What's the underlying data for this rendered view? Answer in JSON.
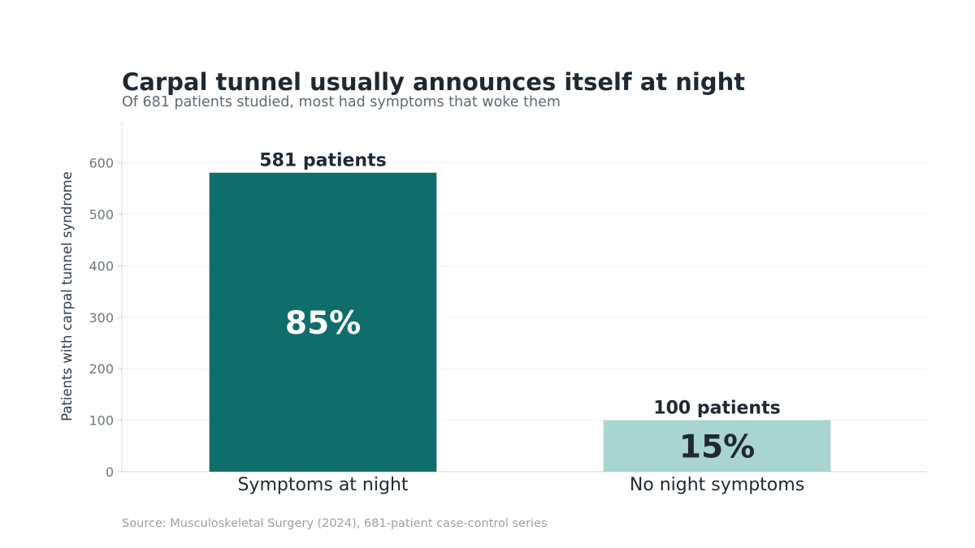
{
  "chart_data": {
    "type": "bar",
    "title": "Carpal tunnel usually announces itself at night",
    "subtitle": "Of 681 patients studied, most had symptoms that woke them",
    "xlabel": "",
    "ylabel": "Patients with carpal tunnel syndrome",
    "categories": [
      "Symptoms at night",
      "No night symptoms"
    ],
    "values": [
      581,
      100
    ],
    "value_labels": [
      "581 patients",
      "100 patients"
    ],
    "percent_labels": [
      "85%",
      "15%"
    ],
    "colors": [
      "#0f6e6c",
      "#a8d5d1"
    ],
    "percent_label_colors": [
      "#ffffff",
      "#1f2933"
    ],
    "ylim": [
      0,
      680
    ],
    "yticks": [
      0,
      100,
      200,
      300,
      400,
      500,
      600
    ],
    "grid": true,
    "legend": "none",
    "source": "Source: Musculoskeletal Surgery (2024), 681-patient case-control series"
  }
}
